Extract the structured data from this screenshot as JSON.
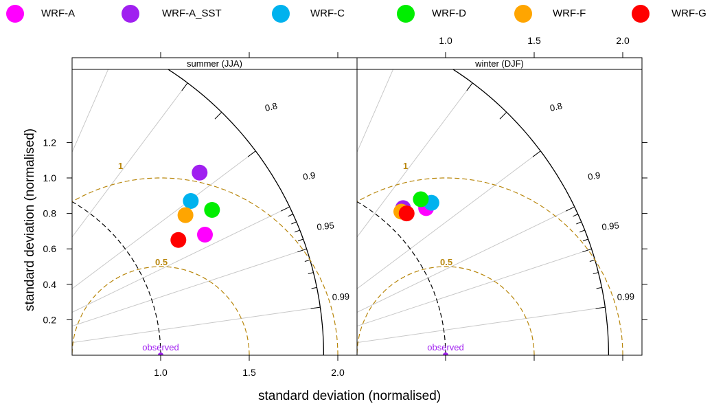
{
  "legend": [
    {
      "name": "WRF-A",
      "color": "#FF00FF"
    },
    {
      "name": "WRF-A_SST",
      "color": "#A020F0"
    },
    {
      "name": "WRF-C",
      "color": "#00B2EE"
    },
    {
      "name": "WRF-D",
      "color": "#00EE00"
    },
    {
      "name": "WRF-F",
      "color": "#FFA500"
    },
    {
      "name": "WRF-G",
      "color": "#FF0000"
    }
  ],
  "axes": {
    "xlabel": "standard deviation (normalised)",
    "ylabel": "standard deviation (normalised)"
  },
  "chart_data": [
    {
      "type": "scatter",
      "subtype": "taylor-diagram",
      "title": "summer (JJA)",
      "xlim": [
        0.5,
        2.1
      ],
      "ylim": [
        0,
        1.42
      ],
      "x_ticks": [
        "1.0",
        "1.5",
        "2.0"
      ],
      "y_ticks": [
        "0.2",
        "0.4",
        "0.6",
        "0.8",
        "1.0",
        "1.2"
      ],
      "correlation_labels": [
        "0.8",
        "0.9",
        "0.95",
        "0.99"
      ],
      "rms_labels": [
        "0.5",
        "1"
      ],
      "observed_label": "observed",
      "observed": {
        "x": 1.0,
        "y": 0.0
      },
      "outer_arc_sd": 1.92,
      "grid": true,
      "legend_position": "top",
      "points": [
        {
          "name": "WRF-A",
          "x": 1.25,
          "y": 0.68
        },
        {
          "name": "WRF-A_SST",
          "x": 1.22,
          "y": 1.03
        },
        {
          "name": "WRF-C",
          "x": 1.17,
          "y": 0.87
        },
        {
          "name": "WRF-D",
          "x": 1.29,
          "y": 0.82
        },
        {
          "name": "WRF-F",
          "x": 1.14,
          "y": 0.79
        },
        {
          "name": "WRF-G",
          "x": 1.1,
          "y": 0.65
        }
      ]
    },
    {
      "type": "scatter",
      "subtype": "taylor-diagram",
      "title": "winter (DJF)",
      "xlim": [
        0.5,
        2.1
      ],
      "ylim": [
        0,
        1.42
      ],
      "x_ticks": [
        "1.0",
        "1.5",
        "2.0"
      ],
      "y_ticks": [
        "0.2",
        "0.4",
        "0.6",
        "0.8",
        "1.0",
        "1.2"
      ],
      "correlation_labels": [
        "0.8",
        "0.9",
        "0.95",
        "0.99"
      ],
      "rms_labels": [
        "0.5",
        "1"
      ],
      "observed_label": "observed",
      "observed": {
        "x": 1.0,
        "y": 0.0
      },
      "outer_arc_sd": 1.92,
      "grid": true,
      "legend_position": "top",
      "points": [
        {
          "name": "WRF-A",
          "x": 0.89,
          "y": 0.83
        },
        {
          "name": "WRF-A_SST",
          "x": 0.76,
          "y": 0.83
        },
        {
          "name": "WRF-C",
          "x": 0.92,
          "y": 0.86
        },
        {
          "name": "WRF-D",
          "x": 0.86,
          "y": 0.88
        },
        {
          "name": "WRF-F",
          "x": 0.75,
          "y": 0.81
        },
        {
          "name": "WRF-G",
          "x": 0.78,
          "y": 0.8
        }
      ]
    }
  ]
}
